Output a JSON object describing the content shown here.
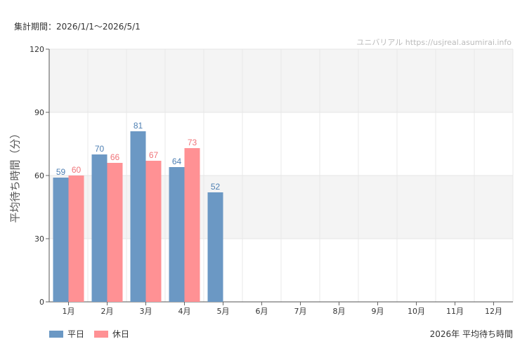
{
  "period_label": "集計期間：2026/1/1〜2026/5/1",
  "source_label": "ユニバリアル  https://usjreal.asumirai.info",
  "caption": "2026年 平均待ち時間",
  "chart_data": {
    "type": "bar",
    "ylabel": "平均待ち時間（分）",
    "ylim": [
      0,
      120
    ],
    "yticks": [
      "0",
      "30",
      "60",
      "90",
      "120"
    ],
    "categories": [
      "1月",
      "2月",
      "3月",
      "4月",
      "5月",
      "6月",
      "7月",
      "8月",
      "9月",
      "10月",
      "11月",
      "12月"
    ],
    "series": [
      {
        "name": "平日",
        "color": "#6b98c4",
        "label_color": "#4d7fb3",
        "values": [
          59,
          70,
          81,
          64,
          52,
          null,
          null,
          null,
          null,
          null,
          null,
          null
        ]
      },
      {
        "name": "休日",
        "color": "#ff9194",
        "label_color": "#f07479",
        "values": [
          60,
          66,
          67,
          73,
          null,
          null,
          null,
          null,
          null,
          null,
          null,
          null
        ]
      }
    ],
    "grid": true,
    "legend": "bottom-left"
  }
}
